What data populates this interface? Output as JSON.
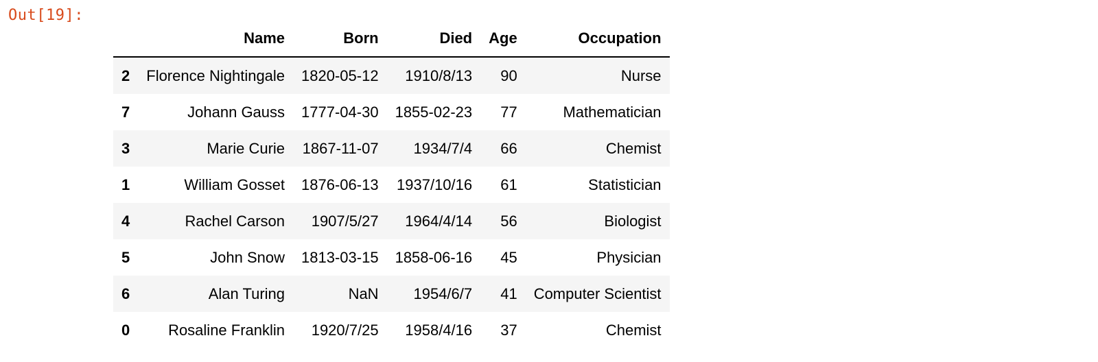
{
  "cell": {
    "prompt": "Out[19]:"
  },
  "table": {
    "index_header": "",
    "columns": [
      "Name",
      "Born",
      "Died",
      "Age",
      "Occupation"
    ],
    "rows": [
      {
        "index": "2",
        "name": "Florence Nightingale",
        "born": "1820-05-12",
        "died": "1910/8/13",
        "age": "90",
        "occupation": "Nurse"
      },
      {
        "index": "7",
        "name": "Johann Gauss",
        "born": "1777-04-30",
        "died": "1855-02-23",
        "age": "77",
        "occupation": "Mathematician"
      },
      {
        "index": "3",
        "name": "Marie Curie",
        "born": "1867-11-07",
        "died": "1934/7/4",
        "age": "66",
        "occupation": "Chemist"
      },
      {
        "index": "1",
        "name": "William Gosset",
        "born": "1876-06-13",
        "died": "1937/10/16",
        "age": "61",
        "occupation": "Statistician"
      },
      {
        "index": "4",
        "name": "Rachel Carson",
        "born": "1907/5/27",
        "died": "1964/4/14",
        "age": "56",
        "occupation": "Biologist"
      },
      {
        "index": "5",
        "name": "John Snow",
        "born": "1813-03-15",
        "died": "1858-06-16",
        "age": "45",
        "occupation": "Physician"
      },
      {
        "index": "6",
        "name": "Alan Turing",
        "born": "NaN",
        "died": "1954/6/7",
        "age": "41",
        "occupation": "Computer Scientist"
      },
      {
        "index": "0",
        "name": "Rosaline Franklin",
        "born": "1920/7/25",
        "died": "1958/4/16",
        "age": "37",
        "occupation": "Chemist"
      }
    ]
  },
  "colors": {
    "prompt": "#d84a1b",
    "row_stripe": "#f5f5f5",
    "header_rule": "#000000"
  }
}
